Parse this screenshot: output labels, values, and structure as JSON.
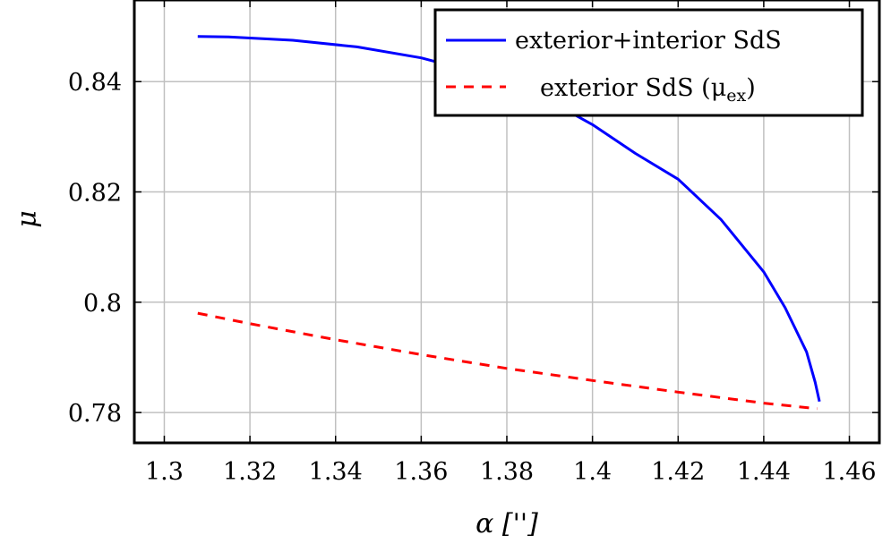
{
  "chart_data": {
    "type": "line",
    "xlabel": "α ['']",
    "ylabel": "μ",
    "xlim": [
      1.293,
      1.467
    ],
    "ylim": [
      0.7745,
      0.8548
    ],
    "xticks": [
      "1.3",
      "1.32",
      "1.34",
      "1.36",
      "1.38",
      "1.4",
      "1.42",
      "1.44",
      "1.46"
    ],
    "xtick_values": [
      1.3,
      1.32,
      1.34,
      1.36,
      1.38,
      1.4,
      1.42,
      1.44,
      1.46
    ],
    "yticks": [
      "0.78",
      "0.8",
      "0.82",
      "0.84"
    ],
    "ytick_values": [
      0.78,
      0.8,
      0.82,
      0.84
    ],
    "grid": true,
    "legend_position": "top-right",
    "series": [
      {
        "name": "exterior+interior SdS",
        "color": "#0000ff",
        "dash": "solid",
        "x": [
          1.3078,
          1.315,
          1.33,
          1.345,
          1.36,
          1.375,
          1.39,
          1.4,
          1.41,
          1.42,
          1.43,
          1.44,
          1.445,
          1.45,
          1.452,
          1.453
        ],
        "y": [
          0.8482,
          0.8481,
          0.8475,
          0.8463,
          0.8443,
          0.8412,
          0.8365,
          0.8322,
          0.827,
          0.8223,
          0.815,
          0.8055,
          0.799,
          0.791,
          0.7855,
          0.782
        ]
      },
      {
        "name": "exterior SdS (μex)",
        "legend_main": "exterior SdS (μ",
        "legend_sub": "ex",
        "legend_close": ")",
        "color": "#ff0000",
        "dash": "dashed",
        "x": [
          1.3078,
          1.32,
          1.34,
          1.36,
          1.38,
          1.4,
          1.42,
          1.44,
          1.4525
        ],
        "y": [
          0.798,
          0.7961,
          0.7932,
          0.7905,
          0.788,
          0.7858,
          0.7837,
          0.7817,
          0.7807
        ]
      }
    ]
  }
}
